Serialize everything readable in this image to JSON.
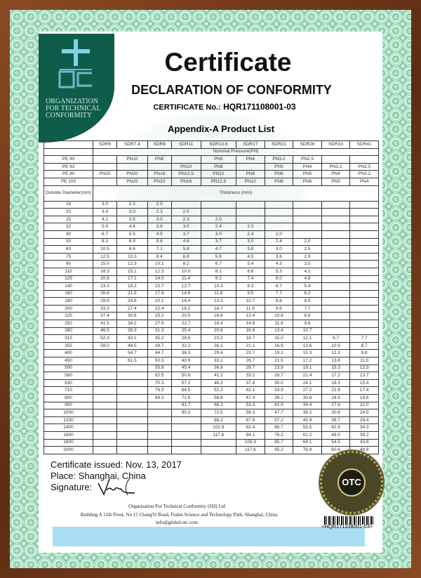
{
  "logo": {
    "lines": [
      "ORGANIZATION",
      "FOR TECHNICAL",
      "CONFORMITY"
    ],
    "mark": "OTC"
  },
  "title": "Certificate",
  "subtitle": "DECLARATION OF CONFORMITY",
  "certificate_no": {
    "label": "CERTIFICATE No.:",
    "value": "HQR171108001-03"
  },
  "appendix": "Appendix-A  Product List",
  "table": {
    "sdr_headers": [
      "SDR6",
      "SDR7.4",
      "SDR9",
      "SDR11",
      "SDR13.6",
      "SDR17",
      "SDR21",
      "SDR26",
      "SDR33",
      "SDR41"
    ],
    "nominal_pressure_label": "Nominal Pressure(PN)",
    "pressure_rows": [
      [
        "PE 40",
        "",
        "PN10",
        "PN8",
        "",
        "PN5",
        "PN4",
        "PN3.2",
        "PN2.5",
        "",
        ""
      ],
      [
        "PE 63",
        "",
        "",
        "",
        "PN10",
        "PN8",
        "",
        "PN5",
        "PN4",
        "PN3.2",
        "PN2.5"
      ],
      [
        "PE 80",
        "PN25",
        "PN20",
        "PN16",
        "PN12.5",
        "PN10",
        "PN8",
        "PN6",
        "PN5",
        "PN4",
        "PN3.2"
      ],
      [
        "PE 100",
        "",
        "PN25",
        "PN20",
        "PN16",
        "PN12.5",
        "PN10",
        "PN8",
        "PN6",
        "PN5",
        "PN4"
      ]
    ],
    "outside_diameter_label": "Outside Diameter(mm)",
    "thickness_label": "Thickness (mm)",
    "rows": [
      [
        "16",
        "3.0",
        "2.3",
        "2.0",
        "",
        "",
        "",
        "",
        "",
        "",
        ""
      ],
      [
        "20",
        "3.4",
        "3.0",
        "2.3",
        "2.0",
        "",
        "",
        "",
        "",
        "",
        ""
      ],
      [
        "25",
        "4.2",
        "3.5",
        "3.0",
        "2.3",
        "2.0",
        "",
        "",
        "",
        "",
        ""
      ],
      [
        "32",
        "5.4",
        "4.4",
        "3.6",
        "3.0",
        "2.4",
        "2.0",
        "",
        "",
        "",
        ""
      ],
      [
        "40",
        "6.7",
        "5.5",
        "4.5",
        "3.7",
        "3.0",
        "2.4",
        "2.0",
        "",
        "",
        ""
      ],
      [
        "50",
        "8.3",
        "6.9",
        "5.6",
        "4.6",
        "3.7",
        "3.0",
        "2.4",
        "2.0",
        "",
        ""
      ],
      [
        "63",
        "10.5",
        "8.6",
        "7.1",
        "5.8",
        "4.7",
        "3.8",
        "3.0",
        "2.5",
        "",
        ""
      ],
      [
        "75",
        "12.5",
        "10.3",
        "8.4",
        "6.8",
        "5.6",
        "4.5",
        "3.6",
        "2.9",
        "",
        ""
      ],
      [
        "90",
        "15.0",
        "12.3",
        "10.1",
        "8.2",
        "6.7",
        "5.4",
        "4.3",
        "3.5",
        "",
        ""
      ],
      [
        "110",
        "18.3",
        "15.1",
        "12.3",
        "10.0",
        "8.1",
        "6.6",
        "5.3",
        "4.2",
        "",
        ""
      ],
      [
        "125",
        "20.8",
        "17.1",
        "14.0",
        "11.4",
        "9.2",
        "7.4",
        "6.0",
        "4.8",
        "",
        ""
      ],
      [
        "140",
        "23.3",
        "19.2",
        "15.7",
        "12.7",
        "10.3",
        "8.3",
        "6.7",
        "5.4",
        "",
        ""
      ],
      [
        "160",
        "26.6",
        "21.9",
        "17.9",
        "14.6",
        "11.8",
        "9.5",
        "7.7",
        "6.2",
        "",
        ""
      ],
      [
        "180",
        "29.9",
        "24.6",
        "20.1",
        "16.4",
        "13.3",
        "10.7",
        "8.6",
        "6.9",
        "",
        ""
      ],
      [
        "200",
        "33.2",
        "27.4",
        "22.4",
        "18.2",
        "14.7",
        "11.9",
        "9.6",
        "7.7",
        "",
        ""
      ],
      [
        "225",
        "37.4",
        "30.8",
        "25.2",
        "20.5",
        "16.6",
        "13.4",
        "10.8",
        "8.6",
        "",
        ""
      ],
      [
        "250",
        "41.5",
        "34.2",
        "27.9",
        "22.7",
        "18.4",
        "14.8",
        "11.9",
        "9.6",
        "",
        ""
      ],
      [
        "280",
        "46.5",
        "38.3",
        "31.3",
        "25.4",
        "20.6",
        "16.6",
        "13.4",
        "10.7",
        "",
        ""
      ],
      [
        "315",
        "52.3",
        "43.1",
        "35.2",
        "28.6",
        "23.2",
        "18.7",
        "15.0",
        "12.1",
        "9.7",
        "7.7"
      ],
      [
        "355",
        "59.0",
        "48.5",
        "39.7",
        "32.2",
        "26.1",
        "21.1",
        "16.9",
        "13.6",
        "10.9",
        "8.7"
      ],
      [
        "400",
        "",
        "54.7",
        "44.7",
        "36.3",
        "29.4",
        "23.7",
        "19.1",
        "15.3",
        "12.3",
        "9.8"
      ],
      [
        "450",
        "",
        "61.5",
        "50.3",
        "40.9",
        "33.1",
        "26.7",
        "21.5",
        "17.2",
        "13.8",
        "11.0"
      ],
      [
        "500",
        "",
        "",
        "55.8",
        "45.4",
        "36.8",
        "29.7",
        "23.9",
        "19.1",
        "15.3",
        "12.3"
      ],
      [
        "560",
        "",
        "",
        "62.5",
        "50.8",
        "41.2",
        "33.2",
        "26.7",
        "21.4",
        "17.2",
        "13.7"
      ],
      [
        "630",
        "",
        "",
        "70.3",
        "57.2",
        "46.3",
        "37.4",
        "30.0",
        "24.1",
        "19.3",
        "15.4"
      ],
      [
        "710",
        "",
        "",
        "79.3",
        "64.5",
        "52.2",
        "42.1",
        "33.9",
        "27.2",
        "21.8",
        "17.4"
      ],
      [
        "800",
        "",
        "",
        "89.3",
        "72.6",
        "58.8",
        "47.4",
        "38.1",
        "30.6",
        "24.5",
        "19.6"
      ],
      [
        "900",
        "",
        "",
        "",
        "81.7",
        "66.2",
        "53.3",
        "42.9",
        "34.4",
        "27.6",
        "22.0"
      ],
      [
        "1000",
        "",
        "",
        "",
        "90.2",
        "72.5",
        "59.3",
        "47.7",
        "38.2",
        "30.6",
        "24.5"
      ],
      [
        "1200",
        "",
        "",
        "",
        "",
        "88.2",
        "67.9",
        "57.2",
        "45.9",
        "36.7",
        "29.4"
      ],
      [
        "1400",
        "",
        "",
        "",
        "",
        "102.9",
        "82.4",
        "66.7",
        "53.5",
        "42.9",
        "34.3"
      ],
      [
        "1600",
        "",
        "",
        "",
        "",
        "117.6",
        "94.1",
        "76.2",
        "61.2",
        "49.0",
        "39.2"
      ],
      [
        "1800",
        "",
        "",
        "",
        "",
        "",
        "105.9",
        "85.7",
        "69.1",
        "54.5",
        "43.8"
      ],
      [
        "2000",
        "",
        "",
        "",
        "",
        "",
        "117.6",
        "95.2",
        "76.9",
        "60.6",
        "48.8"
      ]
    ]
  },
  "footer": {
    "issued": "Certificate issued: Nov. 13, 2017",
    "place": "Place: Shanghai, China",
    "signature_label": "Signature:",
    "org": "Organization For Technical Conformity (SH) Ltd",
    "address": "Building A 11th Floor, No.15 ChangYi Road, Fudan Science and Technology Park, Shanghai, China",
    "email": "info@global-otc.com",
    "barcode": "<HQR171108001-03>"
  },
  "colors": {
    "frame": "#7b3f1e",
    "border_green": "#7fc8a4",
    "logo_green": "#0e5d4b",
    "blue_bar": "#a9ddf3",
    "seal": "#4a4726"
  }
}
